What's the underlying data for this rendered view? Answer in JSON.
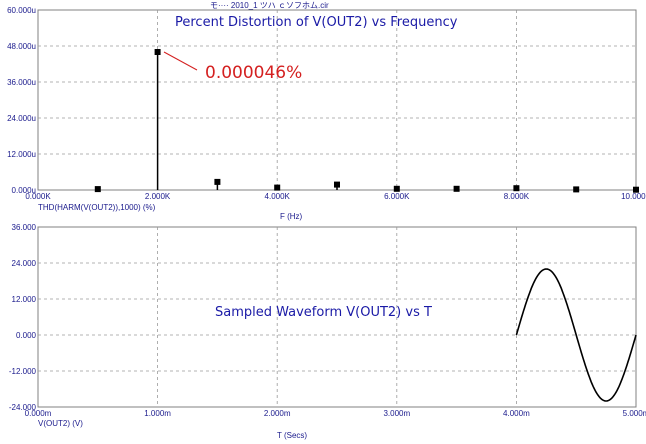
{
  "window_title": "モ···· 2010_1 ツハ ｃソフホム.cir",
  "chart_data": [
    {
      "type": "bar",
      "title": "Percent Distortion of V(OUT2) vs Frequency",
      "annotation": "0.000046%",
      "xlabel": "F (Hz)",
      "ylabel": "THD(HARM(V(OUT2)),1000) (%)",
      "xlim": [
        0,
        10000
      ],
      "ylim": [
        0,
        60
      ],
      "x_ticks": [
        "0.000K",
        "2.000K",
        "4.000K",
        "6.000K",
        "8.000K",
        "10.000K"
      ],
      "y_ticks": [
        "0.000u",
        "12.000u",
        "24.000u",
        "36.000u",
        "48.000u",
        "60.000u"
      ],
      "grid": true,
      "series": [
        {
          "x": [
            1000,
            2000,
            3000,
            4000,
            5000,
            6000,
            7000,
            8000,
            9000,
            10000
          ],
          "values": [
            0.3,
            46,
            2.7,
            0.8,
            1.8,
            0.4,
            0.4,
            0.6,
            0.2,
            0.1
          ]
        }
      ]
    },
    {
      "type": "line",
      "title": "Sampled Waveform  V(OUT2) vs T",
      "xlabel": "T (Secs)",
      "ylabel": "V(OUT2) (V)",
      "xlim": [
        0,
        5.0
      ],
      "ylim": [
        -24,
        36
      ],
      "x_ticks": [
        "0.000m",
        "1.000m",
        "2.000m",
        "3.000m",
        "4.000m",
        "5.000m"
      ],
      "y_ticks": [
        "36.000",
        "24.000",
        "12.000",
        "0.000",
        "-12.000",
        "-24.000"
      ],
      "grid": true,
      "series": [
        {
          "x_start": 4.0,
          "x_end": 5.0,
          "amplitude": 22,
          "period": 1.0
        }
      ]
    }
  ]
}
